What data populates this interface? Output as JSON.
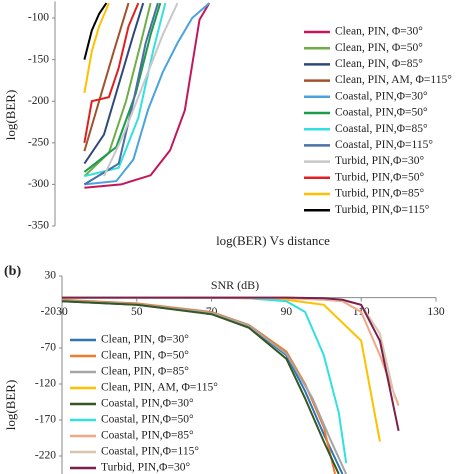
{
  "chart_data": [
    {
      "type": "line",
      "panel_label": null,
      "title": "log(BER) Vs distance",
      "y_label": "log(BER)",
      "xlim": [
        0,
        100
      ],
      "ylim": [
        -350,
        -80
      ],
      "yticks": [
        -100,
        -150,
        -200,
        -250,
        -300,
        -350
      ],
      "series": [
        {
          "name": "Clean, PIN, Φ=30°",
          "color": "#c2185b",
          "x": [
            12,
            27,
            39,
            47,
            53,
            59,
            63
          ],
          "values": [
            -304,
            -300,
            -289,
            -259,
            -211,
            -102,
            -82
          ]
        },
        {
          "name": "Clean, PIN, Φ=50°",
          "color": "#70ad47",
          "x": [
            12,
            22,
            29,
            35,
            39
          ],
          "values": [
            -290,
            -262,
            -200,
            -130,
            -82
          ]
        },
        {
          "name": "Clean, PIN, Φ=85°",
          "color": "#2e4a7d",
          "x": [
            12,
            20,
            26,
            32,
            36
          ],
          "values": [
            -275,
            -240,
            -180,
            -120,
            -82
          ]
        },
        {
          "name": "Clean, PIN, AM, Φ=115°",
          "color": "#a0522d",
          "x": [
            12,
            18,
            24,
            30
          ],
          "values": [
            -260,
            -200,
            -140,
            -82
          ]
        },
        {
          "name": "Coastal, PIN,Φ=30°",
          "color": "#4aa3df",
          "x": [
            12,
            25,
            32,
            38,
            44,
            50,
            56,
            63
          ],
          "values": [
            -300,
            -296,
            -270,
            -210,
            -165,
            -130,
            -100,
            -82
          ]
        },
        {
          "name": "Coastal, PIN,Φ=50°",
          "color": "#1a9c4a",
          "x": [
            12,
            25,
            33,
            39,
            43
          ],
          "values": [
            -285,
            -255,
            -190,
            -120,
            -82
          ]
        },
        {
          "name": "Coastal, PIN,Φ=85°",
          "color": "#33e0e0",
          "x": [
            12,
            26,
            34,
            40,
            45
          ],
          "values": [
            -290,
            -280,
            -220,
            -140,
            -82
          ]
        },
        {
          "name": "Coastal, PIN,Φ=115°",
          "color": "#4a6fa5",
          "x": [
            12,
            26,
            32,
            37,
            42
          ],
          "values": [
            -300,
            -275,
            -200,
            -130,
            -82
          ]
        },
        {
          "name": "Turbid, PIN,Φ=30°",
          "color": "#c8c8c8",
          "x": [
            20,
            28,
            36,
            44,
            50
          ],
          "values": [
            -290,
            -240,
            -180,
            -120,
            -82
          ]
        },
        {
          "name": "Turbid, PIN,Φ=50°",
          "color": "#e02020",
          "x": [
            12,
            15,
            22,
            26,
            30,
            34
          ],
          "values": [
            -250,
            -200,
            -195,
            -160,
            -110,
            -82
          ]
        },
        {
          "name": "Turbid, PIN,Φ=85°",
          "color": "#ffc000",
          "x": [
            12,
            15,
            18,
            22
          ],
          "values": [
            -190,
            -140,
            -110,
            -82
          ]
        },
        {
          "name": "Turbid, PIN,Φ=115°",
          "color": "#000000",
          "x": [
            12,
            15,
            18,
            21
          ],
          "values": [
            -150,
            -115,
            -95,
            -82
          ]
        }
      ]
    },
    {
      "type": "line",
      "panel_label": "(b)",
      "x_label": "SNR (dB)",
      "y_label": "log(BER)",
      "xlim": [
        30,
        130
      ],
      "xticks": [
        30,
        50,
        70,
        90,
        110,
        130
      ],
      "ylim": [
        -245,
        30
      ],
      "yticks": [
        30,
        -20,
        -70,
        -120,
        -170,
        -220
      ],
      "series": [
        {
          "name": "Clean, PIN, Φ=30°",
          "color": "#2e75b6",
          "x": [
            30,
            50,
            70,
            80,
            90,
            95,
            100,
            105
          ],
          "values": [
            -5,
            -10,
            -22,
            -40,
            -80,
            -130,
            -190,
            -245
          ]
        },
        {
          "name": "Clean, PIN, Φ=50°",
          "color": "#ed7d31",
          "x": [
            30,
            50,
            70,
            80,
            90,
            95,
            100,
            103
          ],
          "values": [
            -3,
            -8,
            -20,
            -38,
            -75,
            -120,
            -180,
            -245
          ]
        },
        {
          "name": "Clean, PIN, Φ=85°",
          "color": "#a5a5a5",
          "x": [
            30,
            50,
            70,
            80,
            90,
            97,
            102,
            106
          ],
          "values": [
            -4,
            -9,
            -21,
            -39,
            -78,
            -140,
            -200,
            -245
          ]
        },
        {
          "name": "Clean, PIN, AM, Φ=115°",
          "color": "#ffc000",
          "x": [
            30,
            50,
            70,
            80,
            90,
            100,
            110,
            115
          ],
          "values": [
            0,
            0,
            0,
            -1,
            -3,
            -10,
            -60,
            -200
          ]
        },
        {
          "name": "Coastal, PIN,Φ=30°",
          "color": "#375623",
          "x": [
            30,
            50,
            70,
            80,
            90,
            95,
            100,
            104
          ],
          "values": [
            -5,
            -10,
            -23,
            -42,
            -85,
            -140,
            -200,
            -245
          ]
        },
        {
          "name": "Coastal, PIN,Φ=50°",
          "color": "#33e0e0",
          "x": [
            30,
            60,
            80,
            90,
            95,
            100,
            104,
            106
          ],
          "values": [
            0,
            0,
            -1,
            -5,
            -20,
            -80,
            -160,
            -230
          ]
        },
        {
          "name": "Coastal, PIN,Φ=85°",
          "color": "#f4a582",
          "x": [
            30,
            60,
            90,
            100,
            105,
            110,
            115,
            120
          ],
          "values": [
            0,
            0,
            -1,
            -3,
            -5,
            -20,
            -80,
            -150
          ]
        },
        {
          "name": "Coastal, PIN,Φ=115°",
          "color": "#d9c4b0",
          "x": [
            30,
            60,
            90,
            100,
            105,
            110,
            115,
            119
          ],
          "values": [
            0,
            0,
            0,
            -2,
            -4,
            -10,
            -50,
            -140
          ]
        },
        {
          "name": "Turbid, PIN,Φ=30°",
          "color": "#7b1f4d",
          "x": [
            30,
            60,
            90,
            100,
            105,
            110,
            115,
            120
          ],
          "values": [
            0,
            0,
            0,
            -1,
            -3,
            -10,
            -60,
            -185
          ]
        }
      ]
    }
  ]
}
